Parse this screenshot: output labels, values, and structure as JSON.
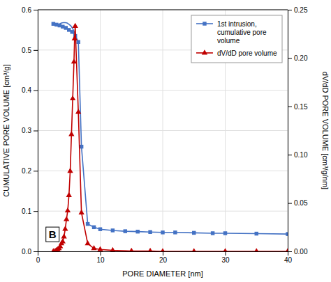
{
  "chart_data": {
    "type": "line",
    "xlabel": "PORE DIAMETER [nm]",
    "ylabel": "CUMULATIVE PORE VOLUME [cm³/g]",
    "y2label": "dV/dD PORE VOLUME [cm³/g/nm]",
    "xlim": [
      0,
      40
    ],
    "xticks": [
      0,
      10,
      20,
      30,
      40
    ],
    "ylim": [
      0,
      0.6
    ],
    "yticks": [
      {
        "value": 0,
        "label": "0.0"
      },
      0.1,
      0.2,
      0.3,
      0.4,
      0.5,
      0.6
    ],
    "y2lim": [
      0,
      0.25
    ],
    "y2ticks": [
      {
        "value": 0,
        "label": "0.00"
      },
      {
        "value": 0.05,
        "label": "0.05"
      },
      {
        "value": 0.1,
        "label": "0.10"
      },
      {
        "value": 0.15,
        "label": "0.15"
      },
      {
        "value": 0.2,
        "label": "0.20"
      },
      {
        "value": 0.25,
        "label": "0.25"
      }
    ],
    "grid": true,
    "legend": "upper right",
    "annotations": [
      {
        "text": "B"
      }
    ],
    "series": [
      {
        "name": "1st intrusion,\ncumulative pore\nvolume",
        "color": "#4472C4",
        "marker": "square",
        "x": [
          2.5,
          3.0,
          3.5,
          4.0,
          4.5,
          5.0,
          5.5,
          6.0,
          6.5,
          7.0,
          8.0,
          9.0,
          10.0,
          12.0,
          14.0,
          16.0,
          18.0,
          20.0,
          22.0,
          25.0,
          28.0,
          30.0,
          35.0,
          40.0
        ],
        "values": [
          0.565,
          0.563,
          0.561,
          0.558,
          0.555,
          0.55,
          0.545,
          0.535,
          0.52,
          0.26,
          0.068,
          0.06,
          0.055,
          0.052,
          0.05,
          0.049,
          0.048,
          0.047,
          0.047,
          0.046,
          0.045,
          0.045,
          0.044,
          0.043
        ]
      },
      {
        "color": "#4472C4",
        "x": [
          3.5,
          3.8,
          4.1,
          4.4,
          4.7,
          5.0,
          5.3,
          5.6,
          5.9,
          6.2,
          6.5
        ],
        "values": [
          0.565,
          0.567,
          0.568,
          0.568,
          0.567,
          0.564,
          0.56,
          0.553,
          0.543,
          0.53,
          0.52
        ]
      },
      {
        "name": "dV/dD pore volume",
        "color": "#C00000",
        "marker": "triangle",
        "axis": "y2",
        "x": [
          2.5,
          2.8,
          3.0,
          3.2,
          3.4,
          3.6,
          3.8,
          4.0,
          4.2,
          4.4,
          4.6,
          4.8,
          5.0,
          5.2,
          5.4,
          5.6,
          5.8,
          5.9,
          6.0,
          6.5,
          7.0,
          8.0,
          9.0,
          10.0,
          12.0,
          15.0,
          18.0,
          20.0,
          25.0,
          30.0,
          35.0,
          40.0
        ],
        "values": [
          0,
          0.0004,
          0.001,
          0.002,
          0.003,
          0.005,
          0.008,
          0.01,
          0.015,
          0.023,
          0.033,
          0.042,
          0.058,
          0.083,
          0.121,
          0.158,
          0.196,
          0.22,
          0.233,
          0.144,
          0.04,
          0.008,
          0.003,
          0.002,
          0.001,
          0.0004,
          0.0003,
          0,
          0,
          0,
          0,
          0
        ]
      }
    ]
  }
}
